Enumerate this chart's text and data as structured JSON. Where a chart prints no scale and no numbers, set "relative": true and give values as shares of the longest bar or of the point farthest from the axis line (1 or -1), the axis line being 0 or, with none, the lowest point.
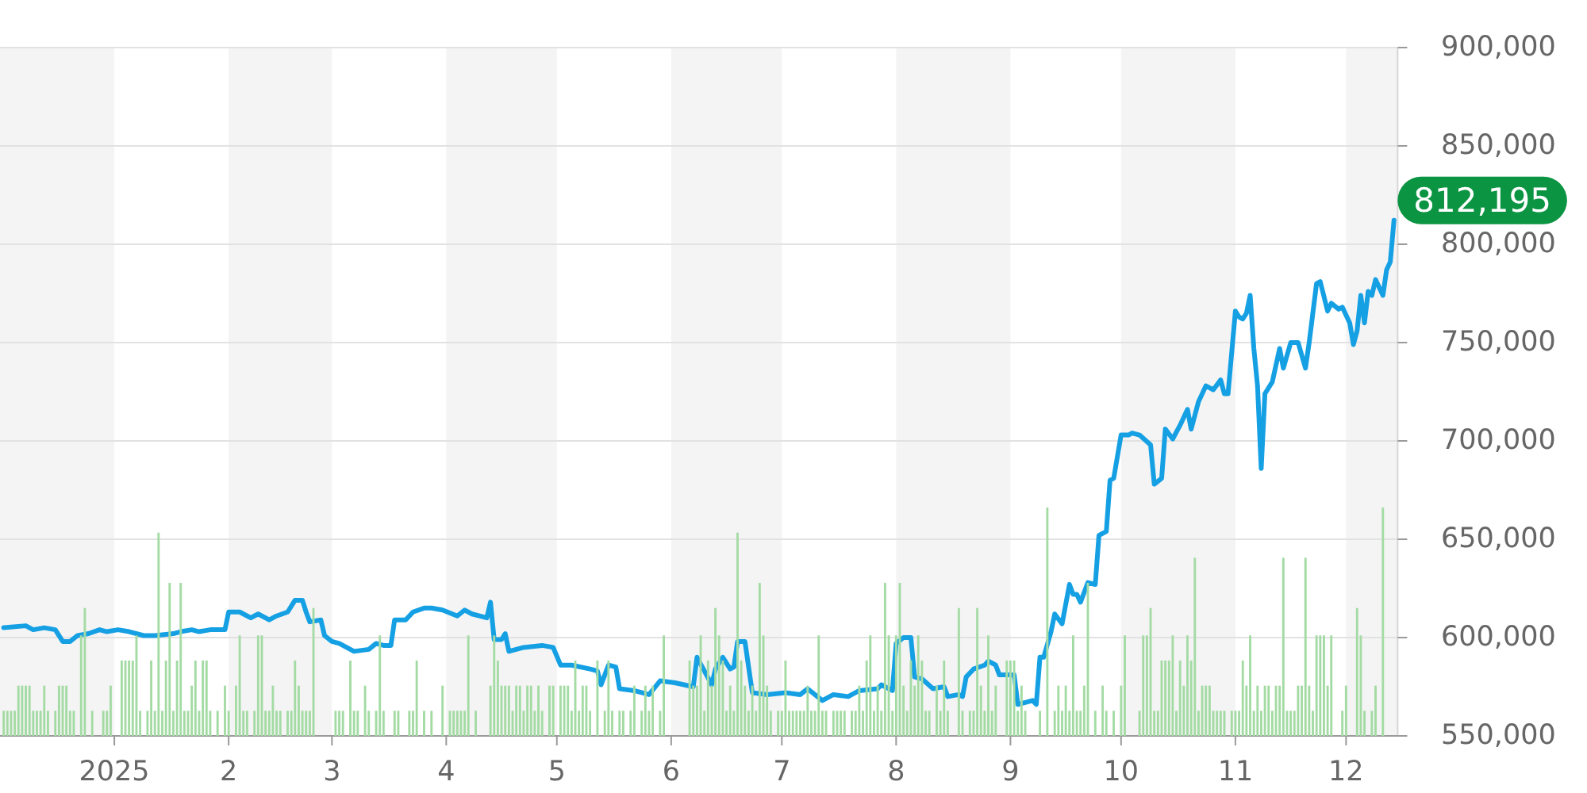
{
  "chart_data": [
    {
      "type": "line",
      "color": "#16a0e4",
      "grid": "y",
      "tick_labels": "y",
      "xlim": [
        "2024-12-01",
        "2025-12-15"
      ],
      "ylim": [
        550000,
        900000
      ],
      "yticks": [
        {
          "value": 550000,
          "label": "550,000"
        },
        {
          "value": 600000,
          "label": "600,000"
        },
        {
          "value": 650000,
          "label": "650,000"
        },
        {
          "value": 700000,
          "label": "700,000"
        },
        {
          "value": 750000,
          "label": "750,000"
        },
        {
          "value": 800000,
          "label": "800,000"
        },
        {
          "value": 850000,
          "label": "850,000"
        },
        {
          "value": 900000,
          "label": "900,000"
        }
      ],
      "bands": [
        {
          "axis": "x",
          "from": "2024-12-01",
          "to": "2025-01-01",
          "color": "#f4f4f4"
        },
        {
          "axis": "x",
          "from": "2025-02-01",
          "to": "2025-03-01",
          "color": "#f4f4f4"
        },
        {
          "axis": "x",
          "from": "2025-04-01",
          "to": "2025-05-01",
          "color": "#f4f4f4"
        },
        {
          "axis": "x",
          "from": "2025-06-01",
          "to": "2025-07-01",
          "color": "#f4f4f4"
        },
        {
          "axis": "x",
          "from": "2025-08-01",
          "to": "2025-09-01",
          "color": "#f4f4f4"
        },
        {
          "axis": "x",
          "from": "2025-10-01",
          "to": "2025-11-01",
          "color": "#f4f4f4"
        },
        {
          "axis": "x",
          "from": "2025-12-01",
          "to": "2025-12-15",
          "color": "#f4f4f4"
        }
      ],
      "annotations": [
        {
          "text": "812,195",
          "x": "2025-12-14",
          "y": 812195
        }
      ],
      "x": [
        "2024-12-02",
        "2024-12-08",
        "2024-12-10",
        "2024-12-13",
        "2024-12-16",
        "2024-12-18",
        "2024-12-20",
        "2024-12-22",
        "2024-12-25",
        "2024-12-28",
        "2024-12-30",
        "2025-01-02",
        "2025-01-05",
        "2025-01-09",
        "2025-01-12",
        "2025-01-17",
        "2025-01-19",
        "2025-01-22",
        "2025-01-24",
        "2025-01-27",
        "2025-01-31",
        "2025-02-01",
        "2025-02-04",
        "2025-02-07",
        "2025-02-09",
        "2025-02-12",
        "2025-02-14",
        "2025-02-17",
        "2025-02-19",
        "2025-02-21",
        "2025-02-22",
        "2025-02-23",
        "2025-02-26",
        "2025-02-27",
        "2025-03-01",
        "2025-03-03",
        "2025-03-07",
        "2025-03-11",
        "2025-03-13",
        "2025-03-15",
        "2025-03-17",
        "2025-03-18",
        "2025-03-21",
        "2025-03-23",
        "2025-03-26",
        "2025-03-28",
        "2025-03-31",
        "2025-04-04",
        "2025-04-06",
        "2025-04-08",
        "2025-04-10",
        "2025-04-12",
        "2025-04-13",
        "2025-04-14",
        "2025-04-16",
        "2025-04-17",
        "2025-04-18",
        "2025-04-22",
        "2025-04-27",
        "2025-04-30",
        "2025-05-02",
        "2025-05-05",
        "2025-05-10",
        "2025-05-12",
        "2025-05-13",
        "2025-05-15",
        "2025-05-17",
        "2025-05-18",
        "2025-05-22",
        "2025-05-26",
        "2025-05-29",
        "2025-06-02",
        "2025-06-07",
        "2025-06-08",
        "2025-06-10",
        "2025-06-12",
        "2025-06-13",
        "2025-06-15",
        "2025-06-17",
        "2025-06-18",
        "2025-06-19",
        "2025-06-21",
        "2025-06-23",
        "2025-06-27",
        "2025-07-02",
        "2025-07-06",
        "2025-07-08",
        "2025-07-12",
        "2025-07-15",
        "2025-07-19",
        "2025-07-22",
        "2025-07-27",
        "2025-07-28",
        "2025-07-31",
        "2025-08-01",
        "2025-08-03",
        "2025-08-05",
        "2025-08-06",
        "2025-08-08",
        "2025-08-11",
        "2025-08-14",
        "2025-08-15",
        "2025-08-18",
        "2025-08-19",
        "2025-08-20",
        "2025-08-22",
        "2025-08-25",
        "2025-08-26",
        "2025-08-28",
        "2025-08-29",
        "2025-09-02",
        "2025-09-03",
        "2025-09-05",
        "2025-09-07",
        "2025-09-08",
        "2025-09-09",
        "2025-09-10",
        "2025-09-12",
        "2025-09-13",
        "2025-09-15",
        "2025-09-17",
        "2025-09-18",
        "2025-09-19",
        "2025-09-20",
        "2025-09-22",
        "2025-09-24",
        "2025-09-25",
        "2025-09-27",
        "2025-09-28",
        "2025-09-29",
        "2025-10-01",
        "2025-10-03",
        "2025-10-04",
        "2025-10-06",
        "2025-10-09",
        "2025-10-10",
        "2025-10-12",
        "2025-10-13",
        "2025-10-15",
        "2025-10-17",
        "2025-10-19",
        "2025-10-20",
        "2025-10-22",
        "2025-10-24",
        "2025-10-26",
        "2025-10-28",
        "2025-10-29",
        "2025-10-30",
        "2025-11-01",
        "2025-11-02",
        "2025-11-03",
        "2025-11-04",
        "2025-11-05",
        "2025-11-06",
        "2025-11-07",
        "2025-11-08",
        "2025-11-09",
        "2025-11-11",
        "2025-11-13",
        "2025-11-14",
        "2025-11-16",
        "2025-11-18",
        "2025-11-20",
        "2025-11-21",
        "2025-11-23",
        "2025-11-24",
        "2025-11-26",
        "2025-11-27",
        "2025-11-29",
        "2025-11-30",
        "2025-12-02",
        "2025-12-03",
        "2025-12-04",
        "2025-12-05",
        "2025-12-06",
        "2025-12-07",
        "2025-12-08",
        "2025-12-09",
        "2025-12-11",
        "2025-12-12",
        "2025-12-13",
        "2025-12-14"
      ],
      "values": [
        605000,
        606000,
        604000,
        605000,
        604000,
        598000,
        598000,
        601000,
        602000,
        604000,
        603000,
        604000,
        603000,
        601000,
        601000,
        602000,
        603000,
        604000,
        603000,
        604000,
        604000,
        613000,
        613000,
        610000,
        612000,
        609000,
        611000,
        613000,
        619000,
        619000,
        613000,
        608000,
        609000,
        601000,
        598000,
        597000,
        593000,
        594000,
        597000,
        596000,
        596000,
        609000,
        609000,
        613000,
        615000,
        615000,
        614000,
        611000,
        614000,
        612000,
        611000,
        610000,
        618000,
        599000,
        599000,
        602000,
        593000,
        595000,
        596000,
        595000,
        586000,
        586000,
        584000,
        583000,
        576000,
        586000,
        585000,
        574000,
        573000,
        571000,
        578000,
        577000,
        575000,
        590000,
        583000,
        576000,
        584000,
        590000,
        584000,
        585000,
        598000,
        598000,
        572000,
        571000,
        572000,
        571000,
        574000,
        568000,
        571000,
        570000,
        573000,
        574000,
        576000,
        573000,
        597000,
        600000,
        600000,
        580000,
        579000,
        574000,
        575000,
        570000,
        571000,
        570000,
        580000,
        584000,
        586000,
        588000,
        586000,
        581000,
        581000,
        566000,
        567000,
        568000,
        566000,
        590000,
        590000,
        603000,
        612000,
        607000,
        627000,
        622000,
        622000,
        618000,
        628000,
        627000,
        652000,
        654000,
        680000,
        681000,
        703000,
        703000,
        704000,
        703000,
        698000,
        678000,
        681000,
        706000,
        701000,
        708000,
        716000,
        706000,
        720000,
        728000,
        726000,
        731000,
        724000,
        724000,
        766000,
        763000,
        762000,
        765000,
        774000,
        747000,
        728000,
        686000,
        724000,
        730000,
        747000,
        737000,
        750000,
        750000,
        737000,
        750000,
        780000,
        781000,
        766000,
        770000,
        767000,
        768000,
        760000,
        749000,
        756000,
        774000,
        760000,
        776000,
        774000,
        782000,
        774000,
        787000,
        791000,
        812195
      ]
    },
    {
      "type": "bar",
      "relative": true,
      "color": "#a4dba4",
      "xlim": [
        "2024-12-01",
        "2025-12-15"
      ],
      "xticks": [
        {
          "value": "2025-01-01",
          "label": "2025"
        },
        {
          "value": "2025-02-01",
          "label": "2"
        },
        {
          "value": "2025-03-01",
          "label": "3"
        },
        {
          "value": "2025-04-01",
          "label": "4"
        },
        {
          "value": "2025-05-01",
          "label": "5"
        },
        {
          "value": "2025-06-01",
          "label": "6"
        },
        {
          "value": "2025-07-01",
          "label": "7"
        },
        {
          "value": "2025-08-01",
          "label": "8"
        },
        {
          "value": "2025-09-01",
          "label": "9"
        },
        {
          "value": "2025-10-01",
          "label": "10"
        },
        {
          "value": "2025-11-01",
          "label": "11"
        },
        {
          "value": "2025-12-01",
          "label": "12"
        }
      ],
      "x": [
        "2024-12-02",
        "2024-12-03",
        "2024-12-04",
        "2024-12-05",
        "2024-12-06",
        "2024-12-07",
        "2024-12-08",
        "2024-12-09",
        "2024-12-10",
        "2024-12-11",
        "2024-12-12",
        "2024-12-13",
        "2024-12-14",
        "2024-12-16",
        "2024-12-17",
        "2024-12-18",
        "2024-12-19",
        "2024-12-20",
        "2024-12-21",
        "2024-12-23",
        "2024-12-24",
        "2024-12-26",
        "2024-12-29",
        "2024-12-30",
        "2024-12-31",
        "2025-01-03",
        "2025-01-04",
        "2025-01-05",
        "2025-01-06",
        "2025-01-07",
        "2025-01-08",
        "2025-01-10",
        "2025-01-11",
        "2025-01-12",
        "2025-01-13",
        "2025-01-14",
        "2025-01-15",
        "2025-01-16",
        "2025-01-17",
        "2025-01-18",
        "2025-01-19",
        "2025-01-20",
        "2025-01-21",
        "2025-01-22",
        "2025-01-23",
        "2025-01-24",
        "2025-01-25",
        "2025-01-26",
        "2025-01-27",
        "2025-01-29",
        "2025-01-31",
        "2025-02-01",
        "2025-02-03",
        "2025-02-04",
        "2025-02-05",
        "2025-02-06",
        "2025-02-08",
        "2025-02-09",
        "2025-02-10",
        "2025-02-11",
        "2025-02-12",
        "2025-02-13",
        "2025-02-14",
        "2025-02-15",
        "2025-02-17",
        "2025-02-18",
        "2025-02-19",
        "2025-02-20",
        "2025-02-21",
        "2025-02-22",
        "2025-02-23",
        "2025-02-24",
        "2025-03-02",
        "2025-03-03",
        "2025-03-04",
        "2025-03-06",
        "2025-03-07",
        "2025-03-08",
        "2025-03-10",
        "2025-03-11",
        "2025-03-13",
        "2025-03-14",
        "2025-03-15",
        "2025-03-18",
        "2025-03-19",
        "2025-03-22",
        "2025-03-23",
        "2025-03-24",
        "2025-03-26",
        "2025-03-28",
        "2025-03-31",
        "2025-04-02",
        "2025-04-03",
        "2025-04-04",
        "2025-04-05",
        "2025-04-06",
        "2025-04-07",
        "2025-04-09",
        "2025-04-13",
        "2025-04-14",
        "2025-04-15",
        "2025-04-16",
        "2025-04-17",
        "2025-04-18",
        "2025-04-19",
        "2025-04-20",
        "2025-04-21",
        "2025-04-22",
        "2025-04-23",
        "2025-04-24",
        "2025-04-25",
        "2025-04-26",
        "2025-04-27",
        "2025-04-29",
        "2025-04-30",
        "2025-05-02",
        "2025-05-03",
        "2025-05-04",
        "2025-05-05",
        "2025-05-06",
        "2025-05-07",
        "2025-05-08",
        "2025-05-09",
        "2025-05-10",
        "2025-05-12",
        "2025-05-14",
        "2025-05-15",
        "2025-05-16",
        "2025-05-18",
        "2025-05-19",
        "2025-05-21",
        "2025-05-22",
        "2025-05-24",
        "2025-05-25",
        "2025-05-26",
        "2025-05-27",
        "2025-05-29",
        "2025-05-30",
        "2025-06-06",
        "2025-06-07",
        "2025-06-08",
        "2025-06-09",
        "2025-06-10",
        "2025-06-11",
        "2025-06-12",
        "2025-06-13",
        "2025-06-14",
        "2025-06-15",
        "2025-06-16",
        "2025-06-17",
        "2025-06-18",
        "2025-06-19",
        "2025-06-20",
        "2025-06-21",
        "2025-06-22",
        "2025-06-23",
        "2025-06-24",
        "2025-06-25",
        "2025-06-26",
        "2025-06-27",
        "2025-06-28",
        "2025-06-30",
        "2025-07-01",
        "2025-07-02",
        "2025-07-03",
        "2025-07-04",
        "2025-07-05",
        "2025-07-06",
        "2025-07-07",
        "2025-07-08",
        "2025-07-09",
        "2025-07-10",
        "2025-07-11",
        "2025-07-12",
        "2025-07-13",
        "2025-07-15",
        "2025-07-16",
        "2025-07-17",
        "2025-07-18",
        "2025-07-20",
        "2025-07-21",
        "2025-07-22",
        "2025-07-23",
        "2025-07-24",
        "2025-07-25",
        "2025-07-26",
        "2025-07-27",
        "2025-07-28",
        "2025-07-29",
        "2025-07-30",
        "2025-07-31",
        "2025-08-01",
        "2025-08-02",
        "2025-08-03",
        "2025-08-04",
        "2025-08-05",
        "2025-08-06",
        "2025-08-07",
        "2025-08-08",
        "2025-08-09",
        "2025-08-10",
        "2025-08-12",
        "2025-08-13",
        "2025-08-14",
        "2025-08-15",
        "2025-08-18",
        "2025-08-19",
        "2025-08-21",
        "2025-08-22",
        "2025-08-23",
        "2025-08-24",
        "2025-08-25",
        "2025-08-26",
        "2025-08-27",
        "2025-08-28",
        "2025-08-31",
        "2025-09-01",
        "2025-09-02",
        "2025-09-03",
        "2025-09-04",
        "2025-09-05",
        "2025-09-09",
        "2025-09-11",
        "2025-09-13",
        "2025-09-14",
        "2025-09-15",
        "2025-09-16",
        "2025-09-17",
        "2025-09-18",
        "2025-09-19",
        "2025-09-20",
        "2025-09-21",
        "2025-09-22",
        "2025-09-24",
        "2025-09-26",
        "2025-09-27",
        "2025-09-29",
        "2025-10-01",
        "2025-10-02",
        "2025-10-06",
        "2025-10-07",
        "2025-10-08",
        "2025-10-09",
        "2025-10-10",
        "2025-10-11",
        "2025-10-12",
        "2025-10-13",
        "2025-10-14",
        "2025-10-15",
        "2025-10-16",
        "2025-10-17",
        "2025-10-18",
        "2025-10-19",
        "2025-10-20",
        "2025-10-21",
        "2025-10-22",
        "2025-10-23",
        "2025-10-24",
        "2025-10-25",
        "2025-10-26",
        "2025-10-27",
        "2025-10-28",
        "2025-10-29",
        "2025-10-31",
        "2025-11-01",
        "2025-11-02",
        "2025-11-03",
        "2025-11-04",
        "2025-11-05",
        "2025-11-06",
        "2025-11-07",
        "2025-11-08",
        "2025-11-09",
        "2025-11-10",
        "2025-11-11",
        "2025-11-12",
        "2025-11-13",
        "2025-11-14",
        "2025-11-15",
        "2025-11-16",
        "2025-11-17",
        "2025-11-18",
        "2025-11-19",
        "2025-11-20",
        "2025-11-21",
        "2025-11-22",
        "2025-11-23",
        "2025-11-24",
        "2025-11-25",
        "2025-11-26",
        "2025-11-27",
        "2025-11-30",
        "2025-12-01",
        "2025-12-04",
        "2025-12-05",
        "2025-12-06",
        "2025-12-08",
        "2025-12-09",
        "2025-12-11"
      ],
      "values": [
        0.11,
        0.11,
        0.11,
        0.11,
        0.22,
        0.22,
        0.22,
        0.22,
        0.11,
        0.11,
        0.11,
        0.22,
        0.11,
        0.11,
        0.22,
        0.22,
        0.22,
        0.11,
        0.11,
        0.44,
        0.56,
        0.11,
        0.11,
        0.11,
        0.22,
        0.33,
        0.33,
        0.33,
        0.33,
        0.44,
        0.11,
        0.11,
        0.33,
        0.11,
        0.89,
        0.11,
        0.33,
        0.67,
        0.11,
        0.33,
        0.67,
        0.11,
        0.11,
        0.22,
        0.33,
        0.11,
        0.33,
        0.33,
        0.11,
        0.11,
        0.22,
        0.11,
        0.22,
        0.44,
        0.11,
        0.11,
        0.11,
        0.44,
        0.44,
        0.11,
        0.11,
        0.22,
        0.11,
        0.11,
        0.11,
        0.11,
        0.33,
        0.22,
        0.11,
        0.11,
        0.11,
        0.56,
        0.11,
        0.11,
        0.11,
        0.33,
        0.11,
        0.11,
        0.22,
        0.11,
        0.11,
        0.44,
        0.11,
        0.11,
        0.11,
        0.11,
        0.11,
        0.33,
        0.11,
        0.11,
        0.22,
        0.11,
        0.11,
        0.11,
        0.11,
        0.11,
        0.44,
        0.11,
        0.22,
        0.44,
        0.33,
        0.22,
        0.22,
        0.22,
        0.11,
        0.22,
        0.22,
        0.11,
        0.22,
        0.22,
        0.11,
        0.22,
        0.11,
        0.22,
        0.22,
        0.22,
        0.22,
        0.22,
        0.11,
        0.33,
        0.11,
        0.22,
        0.22,
        0.11,
        0.33,
        0.11,
        0.33,
        0.11,
        0.11,
        0.11,
        0.11,
        0.22,
        0.11,
        0.22,
        0.11,
        0.22,
        0.11,
        0.44,
        0.33,
        0.22,
        0.22,
        0.44,
        0.11,
        0.33,
        0.22,
        0.56,
        0.44,
        0.33,
        0.11,
        0.22,
        0.11,
        0.89,
        0.33,
        0.22,
        0.11,
        0.22,
        0.11,
        0.67,
        0.44,
        0.22,
        0.11,
        0.11,
        0.11,
        0.33,
        0.11,
        0.11,
        0.11,
        0.11,
        0.11,
        0.22,
        0.11,
        0.11,
        0.44,
        0.11,
        0.11,
        0.11,
        0.11,
        0.11,
        0.11,
        0.11,
        0.11,
        0.22,
        0.11,
        0.33,
        0.44,
        0.11,
        0.22,
        0.11,
        0.67,
        0.44,
        0.11,
        0.44,
        0.67,
        0.22,
        0.11,
        0.33,
        0.22,
        0.44,
        0.33,
        0.11,
        0.11,
        0.22,
        0.11,
        0.33,
        0.11,
        0.56,
        0.11,
        0.11,
        0.11,
        0.56,
        0.22,
        0.11,
        0.44,
        0.11,
        0.22,
        0.33,
        0.33,
        0.33,
        0.11,
        0.22,
        0.11,
        0.11,
        1,
        0.11,
        0.22,
        0.11,
        0.22,
        0.11,
        0.44,
        0.11,
        0.11,
        0.22,
        0.67,
        0.11,
        0.22,
        0.11,
        0.11,
        0.22,
        0.44,
        0.11,
        0.44,
        0.44,
        0.56,
        0.11,
        0.11,
        0.33,
        0.33,
        0.33,
        0.44,
        0.11,
        0.33,
        0.22,
        0.44,
        0.33,
        0.78,
        0.11,
        0.22,
        0.22,
        0.22,
        0.11,
        0.11,
        0.11,
        0.11,
        0.11,
        0.11,
        0.11,
        0.33,
        0.22,
        0.44,
        0.11,
        0.22,
        0.11,
        0.22,
        0.22,
        0.11,
        0.22,
        0.22,
        0.78,
        0.11,
        0.11,
        0.11,
        0.22,
        0.22,
        0.78,
        0.22,
        0.11,
        0.44,
        0.44,
        0.44,
        0.22,
        0.44,
        0.11,
        0.22,
        0.56,
        0.44,
        0.11,
        0.11,
        0.22,
        1
      ]
    }
  ]
}
